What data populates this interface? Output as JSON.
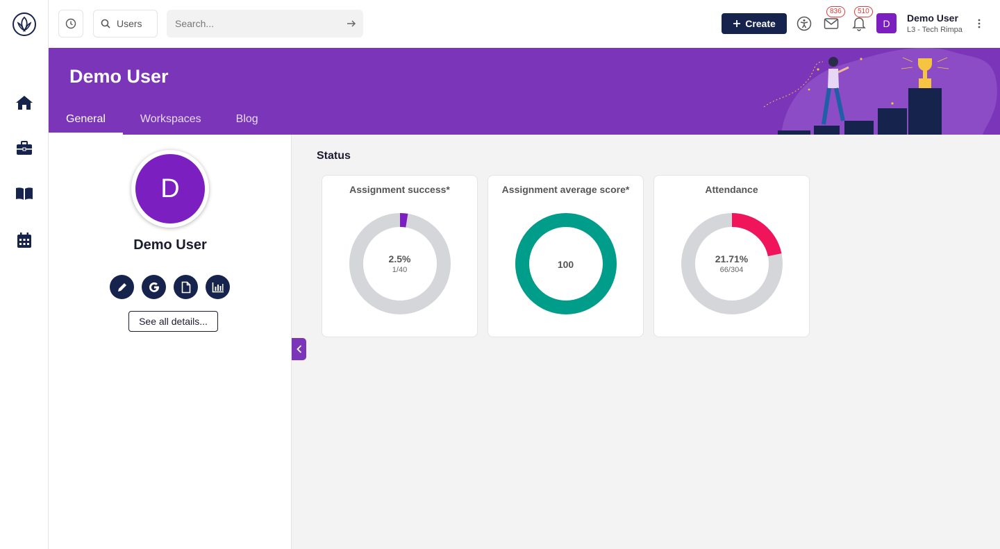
{
  "topbar": {
    "scope_label": "Users",
    "search_placeholder": "Search...",
    "create_label": "Create",
    "mail_badge": "836",
    "notif_badge": "510",
    "avatar_initial": "D",
    "user_name": "Demo User",
    "user_role": "L3 - Tech Rimpa"
  },
  "banner": {
    "title": "Demo User",
    "tabs": [
      "General",
      "Workspaces",
      "Blog"
    ],
    "active_tab": "General"
  },
  "profile": {
    "avatar_initial": "D",
    "name": "Demo User",
    "details_label": "See all details..."
  },
  "status": {
    "title": "Status",
    "cards": [
      {
        "title": "Assignment success*",
        "percent_label": "2.5%",
        "fraction_label": "1/40",
        "value": 0.025,
        "color": "#7b1fc1"
      },
      {
        "title": "Assignment average score*",
        "percent_label": "100",
        "fraction_label": "",
        "value": 1.0,
        "color": "#009e8a"
      },
      {
        "title": "Attendance",
        "percent_label": "21.71%",
        "fraction_label": "66/304",
        "value": 0.2171,
        "color": "#f0145a"
      }
    ]
  },
  "colors": {
    "brand_purple": "#7b35b8",
    "navy": "#16234d",
    "ring_track": "#d5d6da"
  }
}
